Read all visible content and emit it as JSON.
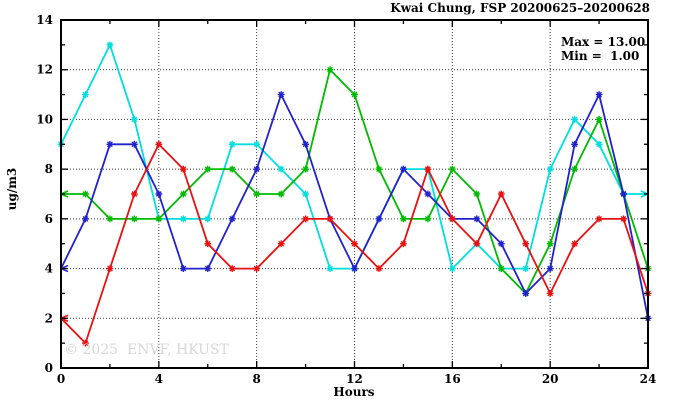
{
  "header": {
    "title": "Kwai Chung, FSP 20200625–20200628"
  },
  "annotations": {
    "max_label": "Max = 13.00",
    "min_label": "Min =  1.00"
  },
  "watermark": "© 2025  ENVF, HKUST",
  "chart_data": {
    "type": "line",
    "title": "Kwai Chung, FSP 20200625–20200628",
    "xlabel": "Hours",
    "ylabel": "ug/m3",
    "xlim": [
      0,
      24
    ],
    "ylim": [
      0,
      14
    ],
    "x": [
      0,
      1,
      2,
      3,
      4,
      5,
      6,
      7,
      8,
      9,
      10,
      11,
      12,
      13,
      14,
      15,
      16,
      17,
      18,
      19,
      20,
      21,
      22,
      23,
      24
    ],
    "x_major_ticks": [
      0,
      4,
      8,
      12,
      16,
      20,
      24
    ],
    "x_minor_ticks": [
      2,
      6,
      10,
      14,
      18,
      22
    ],
    "y_major_ticks": [
      0,
      2,
      4,
      6,
      8,
      10,
      12,
      14
    ],
    "y_minor_ticks": [
      1,
      3,
      5,
      7,
      9,
      11,
      13
    ],
    "grid_x": [
      4,
      8,
      12,
      16,
      20
    ],
    "grid_y": [
      2,
      4,
      6,
      8,
      10,
      12
    ],
    "grid": "dotted",
    "legend": "none",
    "max_value": 13.0,
    "min_value": 1.0,
    "marker": "asterisk",
    "series": [
      {
        "name": "series-cyan",
        "color": "#00dede",
        "values": [
          9,
          11,
          13,
          10,
          6,
          6,
          6,
          9,
          9,
          8,
          7,
          4,
          4,
          6,
          8,
          8,
          4,
          5,
          4,
          4,
          8,
          10,
          9,
          7,
          7
        ],
        "start_cap": "marker",
        "end_cap": "arrow"
      },
      {
        "name": "series-green",
        "color": "#00bb00",
        "values": [
          7,
          7,
          6,
          6,
          6,
          7,
          8,
          8,
          7,
          7,
          8,
          12,
          11,
          8,
          6,
          6,
          8,
          7,
          4,
          3,
          5,
          8,
          10,
          7,
          4
        ],
        "start_cap": "arrow",
        "end_cap": "marker"
      },
      {
        "name": "series-blue",
        "color": "#2222cc",
        "values": [
          4,
          6,
          9,
          9,
          7,
          4,
          4,
          6,
          8,
          11,
          9,
          6,
          4,
          6,
          8,
          7,
          6,
          6,
          5,
          3,
          4,
          9,
          11,
          7,
          2
        ],
        "start_cap": "arrow",
        "end_cap": "marker"
      },
      {
        "name": "series-red",
        "color": "#e81111",
        "values": [
          2,
          1,
          4,
          7,
          9,
          8,
          5,
          4,
          4,
          5,
          6,
          6,
          5,
          4,
          5,
          8,
          6,
          5,
          7,
          5,
          3,
          5,
          6,
          6,
          3
        ],
        "start_cap": "arrow",
        "end_cap": "marker"
      }
    ]
  }
}
